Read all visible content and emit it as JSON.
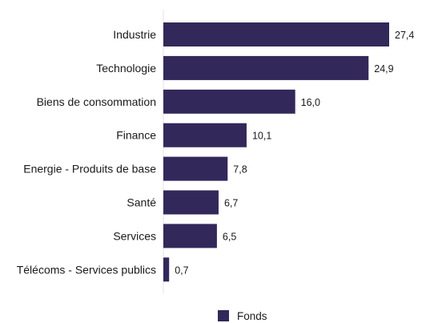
{
  "chart_data": {
    "type": "bar",
    "orientation": "horizontal",
    "categories": [
      "Industrie",
      "Technologie",
      "Biens de consommation",
      "Finance",
      "Energie - Produits de base",
      "Santé",
      "Services",
      "Télécoms - Services publics"
    ],
    "series": [
      {
        "name": "Fonds",
        "values": [
          27.4,
          24.9,
          16.0,
          10.1,
          7.8,
          6.7,
          6.5,
          0.7
        ],
        "value_labels": [
          "27,4",
          "24,9",
          "16,0",
          "10,1",
          "7,8",
          "6,7",
          "6,5",
          "0,7"
        ],
        "color": "#33285a"
      }
    ],
    "xlim": [
      0,
      30
    ],
    "grid": false,
    "legend_position": "bottom"
  }
}
